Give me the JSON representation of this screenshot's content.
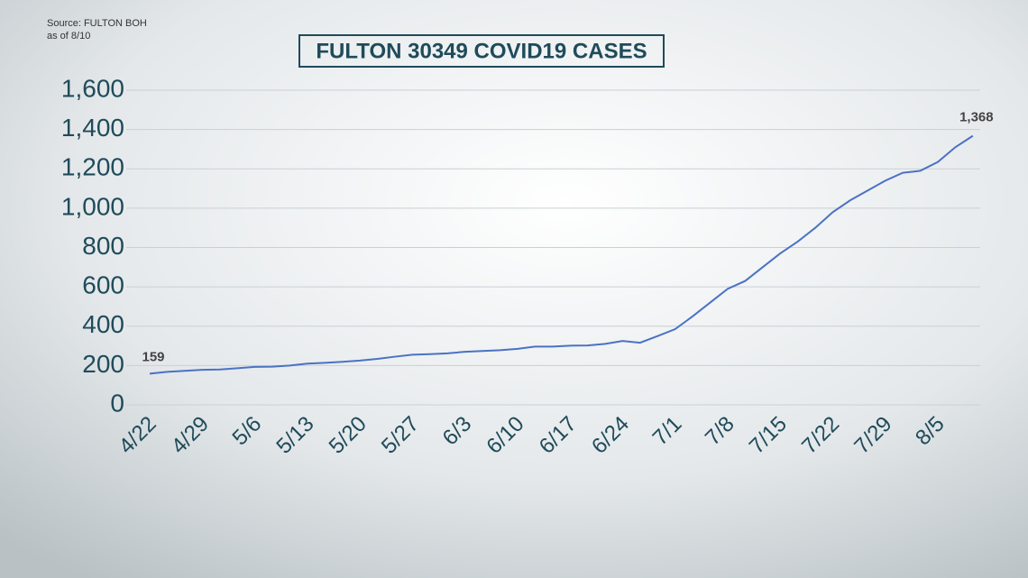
{
  "source": "Source: FULTON BOH",
  "as_of": "as of 8/10",
  "chart_data": {
    "type": "line",
    "title": "FULTON 30349 COVID19 CASES",
    "categories": [
      "4/22",
      null,
      null,
      "4/29",
      null,
      null,
      "5/6",
      null,
      null,
      "5/13",
      null,
      null,
      "5/20",
      null,
      null,
      "5/27",
      null,
      null,
      "6/3",
      null,
      null,
      "6/10",
      null,
      null,
      "6/17",
      null,
      null,
      "6/24",
      null,
      null,
      "7/1",
      null,
      null,
      "7/8",
      null,
      null,
      "7/15",
      null,
      null,
      "7/22",
      null,
      null,
      "7/29",
      null,
      null,
      "8/5",
      null,
      null
    ],
    "series": [
      {
        "name": "Cases",
        "color": "#4a72c4",
        "values": [
          159,
          168,
          173,
          178,
          180,
          186,
          193,
          194,
          200,
          210,
          214,
          219,
          225,
          234,
          245,
          255,
          258,
          262,
          270,
          274,
          278,
          285,
          296,
          296,
          301,
          302,
          310,
          325,
          316,
          350,
          385,
          450,
          520,
          590,
          630,
          700,
          770,
          830,
          900,
          980,
          1040,
          1090,
          1140,
          1180,
          1190,
          1235,
          1310,
          1368
        ],
        "value_labels": [
          "159",
          null,
          null,
          null,
          null,
          null,
          null,
          null,
          null,
          null,
          null,
          null,
          null,
          null,
          null,
          null,
          null,
          null,
          null,
          null,
          null,
          null,
          null,
          null,
          null,
          null,
          null,
          null,
          null,
          null,
          null,
          null,
          null,
          null,
          null,
          null,
          null,
          null,
          null,
          null,
          null,
          null,
          null,
          null,
          null,
          null,
          null,
          "1,368"
        ]
      }
    ],
    "ylim": [
      0,
      1600
    ],
    "yticks": [
      0,
      {
        "value": 200,
        "label": "200"
      },
      400,
      600,
      800,
      {
        "value": 1000,
        "label": "1,000"
      },
      {
        "value": 1200,
        "label": "1,200"
      },
      {
        "value": 1400,
        "label": "1,400"
      },
      {
        "value": 1600,
        "label": "1,600"
      }
    ],
    "grid": true
  }
}
